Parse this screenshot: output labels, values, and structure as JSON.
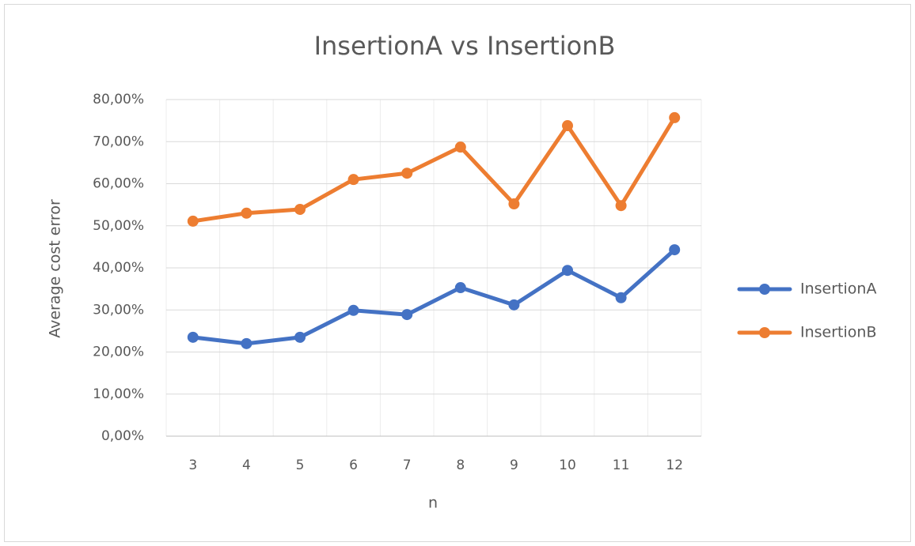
{
  "chart_data": {
    "type": "line",
    "title": "InsertionA vs InsertionB",
    "x_label": "n",
    "y_label": "Average cost error",
    "categories": [
      "3",
      "4",
      "5",
      "6",
      "7",
      "8",
      "9",
      "10",
      "11",
      "12"
    ],
    "series": [
      {
        "name": "InsertionA",
        "color": "#4472c4",
        "values": [
          23.5,
          22.0,
          23.5,
          29.9,
          28.9,
          35.3,
          31.2,
          39.4,
          32.9,
          44.3
        ]
      },
      {
        "name": "InsertionB",
        "color": "#ed7d31",
        "values": [
          51.1,
          53.0,
          53.9,
          61.0,
          62.5,
          68.7,
          55.2,
          73.8,
          54.8,
          75.7
        ]
      }
    ],
    "ylim": [
      0,
      80
    ],
    "yticks": [
      {
        "value": 0,
        "label": "0,00%"
      },
      {
        "value": 10,
        "label": "10,00%"
      },
      {
        "value": 20,
        "label": "20,00%"
      },
      {
        "value": 30,
        "label": "30,00%"
      },
      {
        "value": 40,
        "label": "40,00%"
      },
      {
        "value": 50,
        "label": "50,00%"
      },
      {
        "value": 60,
        "label": "60,00%"
      },
      {
        "value": 70,
        "label": "70,00%"
      },
      {
        "value": 80,
        "label": "80,00%"
      }
    ],
    "grid": true,
    "legend": "right"
  }
}
